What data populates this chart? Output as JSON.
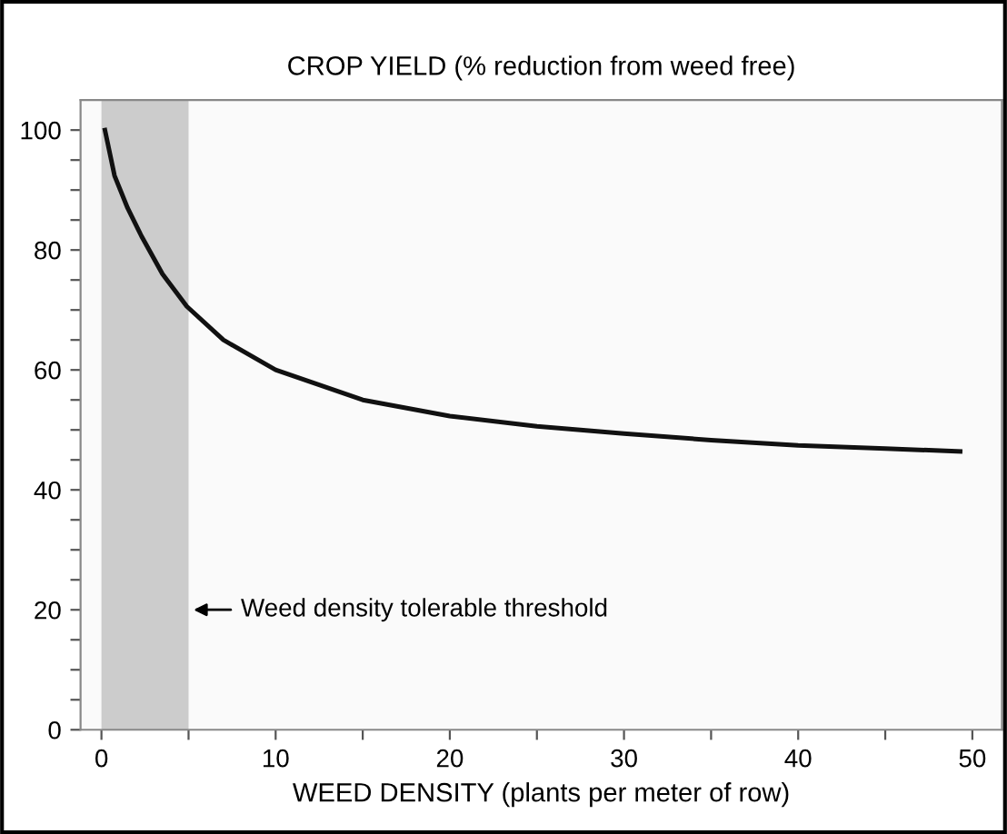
{
  "chart_data": {
    "type": "line",
    "title": "CROP YIELD (% reduction from weed free)",
    "xlabel": "WEED DENSITY (plants per meter of row)",
    "x": [
      0.2,
      0.75,
      1.5,
      2.3,
      3.5,
      4.9,
      7,
      10,
      15,
      20,
      25,
      30,
      35,
      40,
      45,
      49.3
    ],
    "series": [
      {
        "color": "#111111",
        "values": [
          100,
          92.4,
          87,
          82.3,
          76,
          70.6,
          65,
          60,
          55,
          52.3,
          50.6,
          49.4,
          48.3,
          47.4,
          46.9,
          46.4
        ]
      }
    ],
    "xlim": [
      -1.2,
      51.7
    ],
    "ylim": [
      0,
      105
    ],
    "xticks": [
      0,
      {
        "value": 5,
        "label": null
      },
      10,
      {
        "value": 15,
        "label": null
      },
      20,
      {
        "value": 25,
        "label": null
      },
      30,
      {
        "value": 35,
        "label": null
      },
      40,
      {
        "value": 45,
        "label": null
      },
      50
    ],
    "yticks": [
      0,
      {
        "value": 5,
        "label": null
      },
      {
        "value": 10,
        "label": null
      },
      {
        "value": 15,
        "label": null
      },
      20,
      {
        "value": 25,
        "label": null
      },
      {
        "value": 30,
        "label": null
      },
      {
        "value": 35,
        "label": null
      },
      40,
      {
        "value": 45,
        "label": null
      },
      {
        "value": 50,
        "label": null
      },
      {
        "value": 55,
        "label": null
      },
      60,
      {
        "value": 65,
        "label": null
      },
      {
        "value": 70,
        "label": null
      },
      {
        "value": 75,
        "label": null
      },
      80,
      {
        "value": 85,
        "label": null
      },
      {
        "value": 90,
        "label": null
      },
      {
        "value": 95,
        "label": null
      },
      100
    ],
    "bands": [
      {
        "axis": "x",
        "from": 0,
        "to": 5,
        "color": "#cccccc"
      }
    ],
    "annotations": [
      {
        "text": "Weed density tolerable threshold",
        "x": 5,
        "y": 20
      }
    ],
    "grid": false,
    "legend": false,
    "marker": "none",
    "line_style": "solid"
  }
}
